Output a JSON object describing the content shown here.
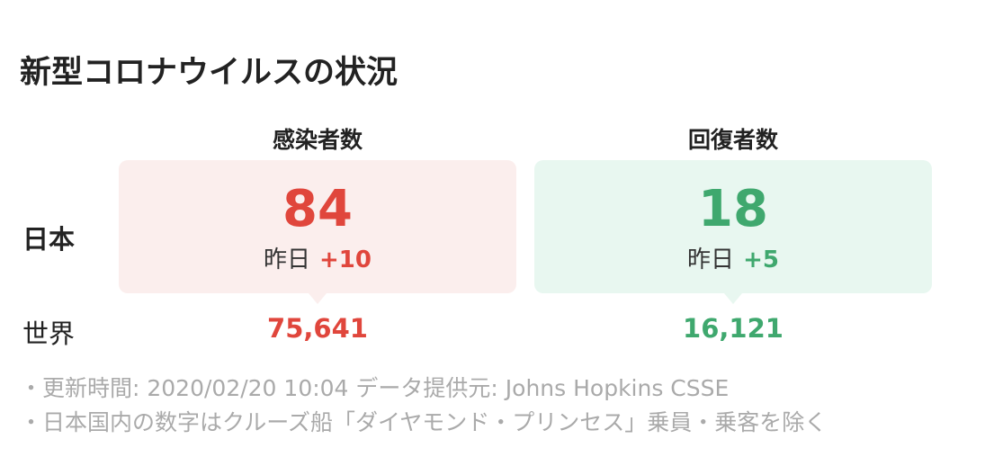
{
  "header": {
    "title": "新型コロナウイルスの状況"
  },
  "columns": [
    "感染者数",
    "回復者数"
  ],
  "rows": [
    {
      "label": "日本",
      "cells": [
        {
          "value": "84",
          "delta_label": "昨日",
          "delta": "+10"
        },
        {
          "value": "18",
          "delta_label": "昨日",
          "delta": "+5"
        }
      ]
    },
    {
      "label": "世界",
      "cells": [
        {
          "value": "75,641"
        },
        {
          "value": "16,121"
        }
      ]
    }
  ],
  "notes": [
    "・更新時間: 2020/02/20 10:04 データ提供元: Johns Hopkins CSSE",
    "・日本国内の数字はクルーズ船「ダイヤモンド・プリンセス」乗員・乗客を除く"
  ]
}
